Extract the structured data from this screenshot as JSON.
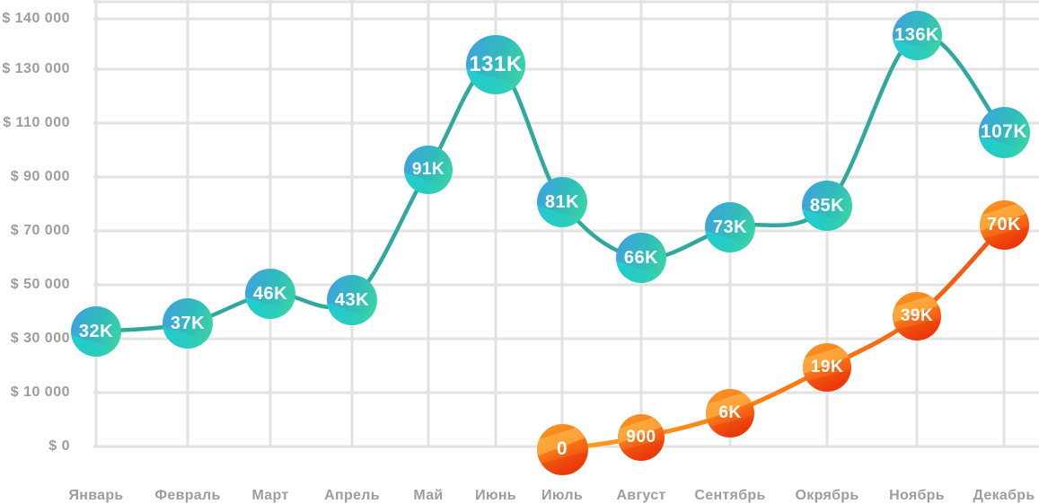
{
  "chart_data": {
    "type": "line",
    "title": "",
    "xlabel": "",
    "ylabel": "",
    "grid": true,
    "legend": false,
    "categories": [
      "Январь",
      "Февраль",
      "Март",
      "Апрель",
      "Май",
      "Июнь",
      "Июль",
      "Август",
      "Сентябрь",
      "Окрябрь",
      "Ноябрь",
      "Декабрь"
    ],
    "y_axis": {
      "tick_labels": [
        "$ 140 000",
        "$ 130 000",
        "$ 110 000",
        "$ 90 000",
        "$ 70 000",
        "$ 50 000",
        "$ 30 000",
        "$ 10 000",
        "$ 0"
      ],
      "tick_values": [
        140000,
        130000,
        110000,
        90000,
        70000,
        50000,
        30000,
        10000,
        0
      ],
      "currency_prefix": "$"
    },
    "series": [
      {
        "name": "primary-teal",
        "line_color": "#2fa89d",
        "line_gradient": [
          "#2fa89d",
          "#2fa89d"
        ],
        "bubble_colors": {
          "from": "#419fe2",
          "mid": "#30bdba",
          "to": "#3eda9f"
        },
        "start_month_index": 0,
        "points": [
          {
            "label": "32K",
            "value": 32000
          },
          {
            "label": "37K",
            "value": 37000
          },
          {
            "label": "46K",
            "value": 46000
          },
          {
            "label": "43K",
            "value": 43000
          },
          {
            "label": "91K",
            "value": 91000
          },
          {
            "label": "131K",
            "value": 131000
          },
          {
            "label": "81K",
            "value": 81000
          },
          {
            "label": "66K",
            "value": 66000
          },
          {
            "label": "73K",
            "value": 73000
          },
          {
            "label": "85K",
            "value": 85000
          },
          {
            "label": "136K",
            "value": 136000
          },
          {
            "label": "107K",
            "value": 107000
          }
        ]
      },
      {
        "name": "secondary-orange",
        "line_color": "#f6821b",
        "line_gradient": [
          "#fb9e1d",
          "#f4540f"
        ],
        "bubble_colors": {
          "from": "#fa9a26",
          "mid": "#f87c19",
          "to": "#ef330c"
        },
        "start_month_index": 6,
        "points": [
          {
            "label": "0",
            "value": 0
          },
          {
            "label": "900",
            "value": 900
          },
          {
            "label": "6K",
            "value": 6000
          },
          {
            "label": "19K",
            "value": 19000
          },
          {
            "label": "39K",
            "value": 39000
          },
          {
            "label": "70K",
            "value": 70000
          }
        ]
      }
    ],
    "grid_color": "#e2e2e2"
  }
}
